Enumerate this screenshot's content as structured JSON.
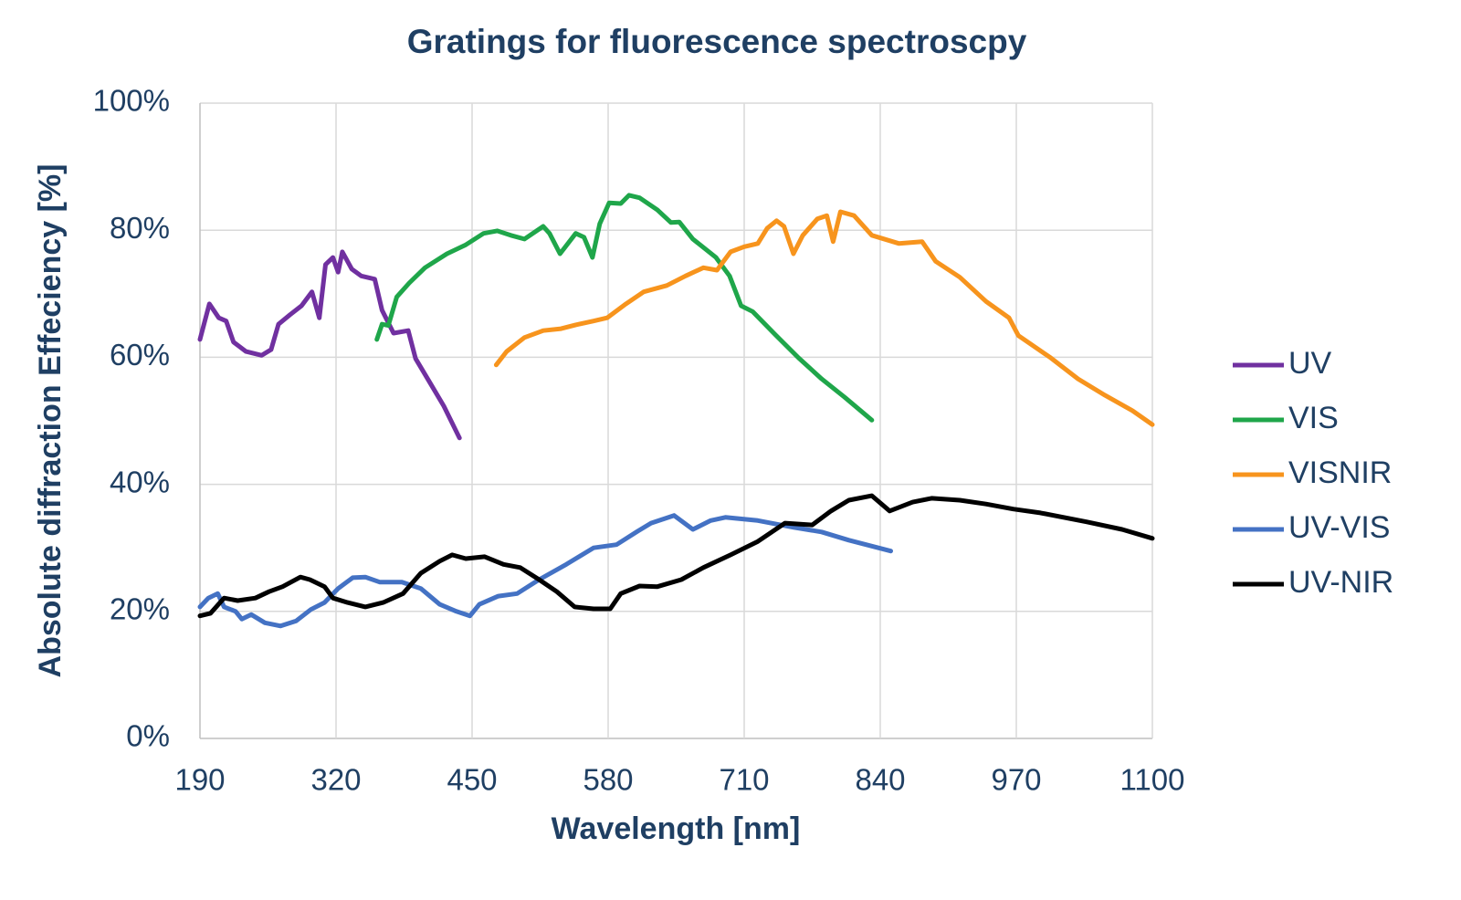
{
  "chart_data": {
    "type": "line",
    "title": "Gratings for fluorescence spectroscpy",
    "x_label": "Wavelength [nm]",
    "y_label": "Absolute diffraction Effeciency  [%]",
    "xlim": [
      190,
      1100
    ],
    "xticks": [
      190,
      320,
      450,
      580,
      710,
      840,
      970,
      1100
    ],
    "ylim": [
      0,
      100
    ],
    "yticks": [
      {
        "value": 0,
        "label": "0%"
      },
      {
        "value": 20,
        "label": "20%"
      },
      {
        "value": 40,
        "label": "40%"
      },
      {
        "value": 60,
        "label": "60%"
      },
      {
        "value": 80,
        "label": "80%"
      },
      {
        "value": 100,
        "label": "100%"
      }
    ],
    "grid": true,
    "legend": "right",
    "series": [
      {
        "name": "UV",
        "color": "#7030a0",
        "x": [
          190,
          199,
          208,
          215,
          222,
          234,
          249,
          258,
          265,
          276,
          287,
          297,
          304,
          310,
          317,
          322,
          326,
          335,
          344,
          357,
          364,
          375,
          389,
          396,
          409,
          423,
          438
        ],
        "values": [
          62.8,
          68.4,
          66.2,
          65.7,
          62.4,
          60.9,
          60.3,
          61.2,
          65.2,
          66.7,
          68.1,
          70.3,
          66.2,
          74.6,
          75.7,
          73.4,
          76.6,
          73.9,
          72.8,
          72.3,
          67.4,
          63.8,
          64.2,
          59.8,
          56.2,
          52.3,
          47.3
        ]
      },
      {
        "name": "VIS",
        "color": "#1fa64a",
        "x": [
          359,
          364,
          370,
          378,
          390,
          405,
          426,
          444,
          461,
          474,
          487,
          500,
          518,
          524,
          534,
          549,
          557,
          565,
          572,
          581,
          592,
          600,
          610,
          627,
          640,
          648,
          661,
          683,
          696,
          707,
          718,
          740,
          762,
          784,
          806,
          832
        ],
        "values": [
          62.8,
          65.2,
          65.0,
          69.5,
          71.7,
          74.1,
          76.3,
          77.7,
          79.5,
          79.9,
          79.2,
          78.6,
          80.6,
          79.5,
          76.3,
          79.5,
          78.9,
          75.7,
          81.0,
          84.3,
          84.2,
          85.5,
          85.1,
          83.2,
          81.2,
          81.3,
          78.6,
          75.7,
          72.8,
          68.1,
          67.2,
          63.5,
          59.9,
          56.6,
          53.7,
          50.1
        ]
      },
      {
        "name": "VISNIR",
        "color": "#f7941d",
        "x": [
          473,
          483,
          500,
          518,
          535,
          549,
          566,
          579,
          597,
          614,
          636,
          654,
          671,
          684,
          697,
          710,
          723,
          732,
          741,
          748,
          757,
          766,
          780,
          789,
          795,
          802,
          815,
          832,
          858,
          880,
          893,
          916,
          941,
          963,
          972,
          1003,
          1029,
          1055,
          1081,
          1100
        ],
        "values": [
          58.8,
          60.9,
          63.1,
          64.2,
          64.5,
          65.1,
          65.7,
          66.2,
          68.4,
          70.3,
          71.3,
          72.8,
          74.1,
          73.7,
          76.6,
          77.4,
          77.9,
          80.3,
          81.5,
          80.6,
          76.3,
          79.2,
          81.8,
          82.3,
          78.2,
          82.9,
          82.3,
          79.2,
          77.9,
          78.2,
          75.1,
          72.6,
          68.8,
          66.2,
          63.4,
          59.9,
          56.6,
          54.0,
          51.6,
          49.4
        ]
      },
      {
        "name": "UV-VIS",
        "color": "#4472c4",
        "x": [
          190,
          198,
          207,
          213,
          224,
          230,
          239,
          252,
          267,
          282,
          296,
          309,
          322,
          336,
          348,
          362,
          383,
          401,
          419,
          435,
          448,
          457,
          475,
          493,
          514,
          540,
          566,
          588,
          608,
          621,
          643,
          661,
          678,
          692,
          723,
          758,
          784,
          810,
          850
        ],
        "values": [
          20.7,
          22.1,
          22.8,
          20.7,
          20.0,
          18.8,
          19.5,
          18.2,
          17.7,
          18.5,
          20.3,
          21.4,
          23.6,
          25.3,
          25.4,
          24.6,
          24.6,
          23.6,
          21.1,
          20.0,
          19.3,
          21.1,
          22.4,
          22.8,
          25.0,
          27.4,
          30.0,
          30.5,
          32.6,
          33.9,
          35.1,
          32.9,
          34.3,
          34.8,
          34.3,
          33.2,
          32.5,
          31.2,
          29.5
        ]
      },
      {
        "name": "UV-NIR",
        "color": "#000000",
        "x": [
          190,
          200,
          213,
          226,
          243,
          256,
          269,
          286,
          295,
          309,
          317,
          331,
          348,
          365,
          384,
          401,
          419,
          431,
          444,
          462,
          480,
          496,
          514,
          531,
          548,
          566,
          582,
          592,
          610,
          627,
          650,
          671,
          697,
          723,
          749,
          775,
          793,
          810,
          832,
          849,
          871,
          889,
          916,
          941,
          967,
          993,
          1037,
          1071,
          1100
        ],
        "values": [
          19.3,
          19.7,
          22.1,
          21.7,
          22.1,
          23.1,
          23.9,
          25.4,
          25.0,
          23.9,
          22.1,
          21.4,
          20.7,
          21.4,
          22.8,
          26.0,
          27.9,
          28.9,
          28.3,
          28.6,
          27.4,
          26.9,
          25.0,
          23.1,
          20.7,
          20.4,
          20.4,
          22.8,
          24.0,
          23.9,
          25.0,
          26.9,
          28.9,
          31.0,
          33.9,
          33.6,
          35.8,
          37.5,
          38.2,
          35.8,
          37.2,
          37.8,
          37.5,
          36.9,
          36.1,
          35.5,
          34.1,
          32.9,
          31.5
        ]
      }
    ]
  }
}
